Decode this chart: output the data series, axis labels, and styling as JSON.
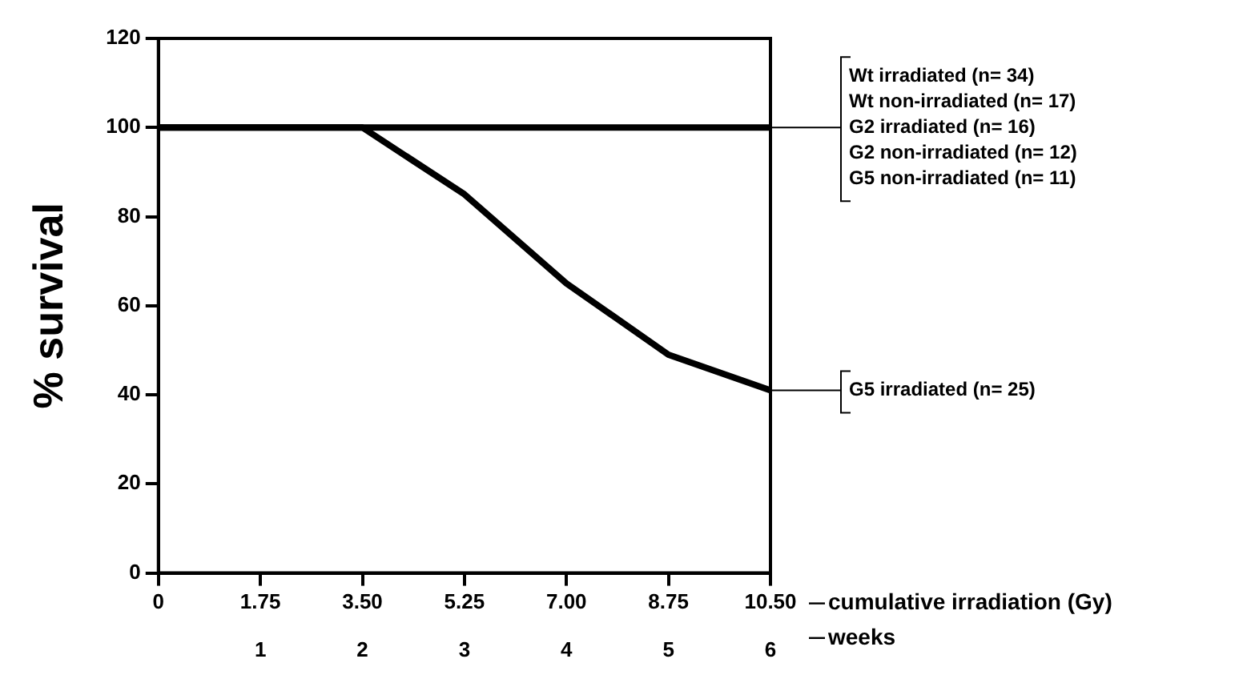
{
  "chart_data": {
    "type": "line",
    "ylabel": "% survival",
    "xlabel": "cumulative irradiation (Gy)",
    "x2label": "weeks",
    "xlim": [
      0,
      10.5
    ],
    "xticks": [
      0,
      1.75,
      {
        "value": 3.5,
        "label": "3.50"
      },
      5.25,
      {
        "value": 7,
        "label": "7.00"
      },
      8.75,
      {
        "value": 10.5,
        "label": "10.50"
      }
    ],
    "x2lim": [
      0,
      6
    ],
    "x2ticks": [
      1,
      2,
      3,
      4,
      5,
      6
    ],
    "ylim": [
      0,
      120
    ],
    "yticks": [
      0,
      20,
      40,
      60,
      80,
      100,
      120
    ],
    "series": [
      {
        "color": "#000000",
        "x": [
          0,
          10.5
        ],
        "values": [
          100,
          100
        ]
      },
      {
        "name": "G5 irradiated (n= 25)",
        "color": "#000000",
        "x": [
          0,
          1.75,
          3.5,
          5.25,
          7,
          8.75,
          10.5
        ],
        "values": [
          100,
          100,
          100,
          85,
          65,
          49,
          41
        ]
      }
    ],
    "annotations": [
      "Wt irradiated (n= 34)",
      "Wt non-irradiated (n= 17)",
      "G2 irradiated (n= 16)",
      "G2 non-irradiated (n= 12)",
      "G5 non-irradiated (n= 11)"
    ],
    "grid": false,
    "legend": "right",
    "marker": "none",
    "line_style": "solid"
  }
}
